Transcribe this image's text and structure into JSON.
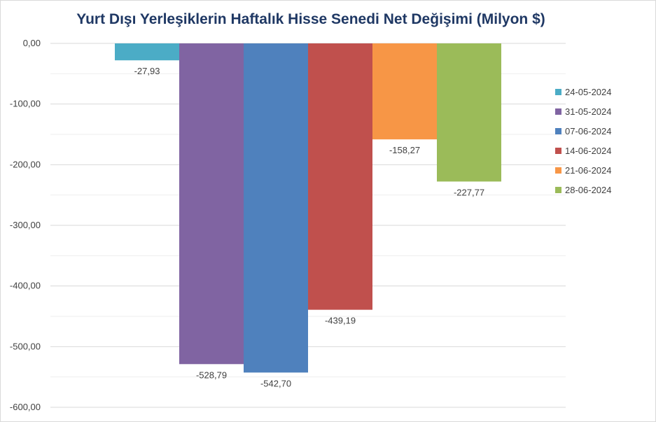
{
  "chart_data": {
    "type": "bar",
    "title": "Yurt Dışı Yerleşiklerin Haftalık Hisse Senedi Net Değişimi (Milyon $)",
    "xlabel": "",
    "ylabel": "",
    "ylim": [
      -600,
      0
    ],
    "y_ticks": [
      0,
      -100,
      -200,
      -300,
      -400,
      -500,
      -600
    ],
    "y_tick_labels": [
      "0,00",
      "-100,00",
      "-200,00",
      "-300,00",
      "-400,00",
      "-500,00",
      "-600,00"
    ],
    "grid": true,
    "legend_position": "right",
    "series": [
      {
        "name": "24-05-2024",
        "value": -27.93,
        "label": "-27,93",
        "color": "#4bacc6"
      },
      {
        "name": "31-05-2024",
        "value": -528.79,
        "label": "-528,79",
        "color": "#8064a2"
      },
      {
        "name": "07-06-2024",
        "value": -542.7,
        "label": "-542,70",
        "color": "#4f81bd"
      },
      {
        "name": "14-06-2024",
        "value": -439.19,
        "label": "-439,19",
        "color": "#c0504d"
      },
      {
        "name": "21-06-2024",
        "value": -158.27,
        "label": "-158,27",
        "color": "#f79646"
      },
      {
        "name": "28-06-2024",
        "value": -227.77,
        "label": "-227,77",
        "color": "#9bbb59"
      }
    ]
  }
}
